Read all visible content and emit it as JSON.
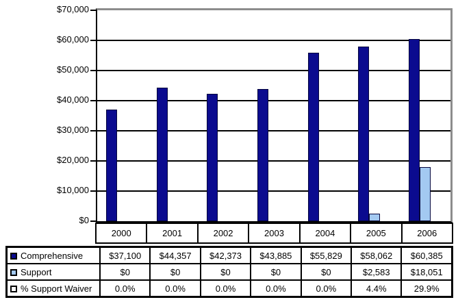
{
  "chart_data": {
    "type": "bar",
    "title": "",
    "xlabel": "",
    "ylabel": "",
    "categories": [
      "2000",
      "2001",
      "2002",
      "2003",
      "2004",
      "2005",
      "2006"
    ],
    "series": [
      {
        "name": "Comprehensive",
        "color": "#0b0b8f",
        "values": [
          37100,
          44357,
          42373,
          43885,
          55829,
          58062,
          60385
        ]
      },
      {
        "name": "Support",
        "color": "#a3c9f1",
        "values": [
          0,
          0,
          0,
          0,
          0,
          2583,
          18051
        ]
      },
      {
        "name": "% Support Waiver",
        "color": "#ffffff",
        "values_percent": [
          0.0,
          0.0,
          0.0,
          0.0,
          0.0,
          4.4,
          29.9
        ]
      }
    ],
    "ylim": [
      0,
      70000
    ],
    "ytick_step": 10000,
    "ytick_labels": [
      "$70,000",
      "$60,000",
      "$50,000",
      "$40,000",
      "$30,000",
      "$20,000",
      "$10,000",
      "$0"
    ],
    "grid": true,
    "legend_position": "data-table-left"
  },
  "table": {
    "rows": [
      {
        "label": "Comprehensive",
        "marker_color": "#0b0b8f",
        "cells": [
          "$37,100",
          "$44,357",
          "$42,373",
          "$43,885",
          "$55,829",
          "$58,062",
          "$60,385"
        ]
      },
      {
        "label": "Support",
        "marker_color": "#a3c9f1",
        "cells": [
          "$0",
          "$0",
          "$0",
          "$0",
          "$0",
          "$2,583",
          "$18,051"
        ]
      },
      {
        "label": "% Support Waiver",
        "marker_color": "#ffffff",
        "cells": [
          "0.0%",
          "0.0%",
          "0.0%",
          "0.0%",
          "0.0%",
          "4.4%",
          "29.9%"
        ]
      }
    ]
  }
}
